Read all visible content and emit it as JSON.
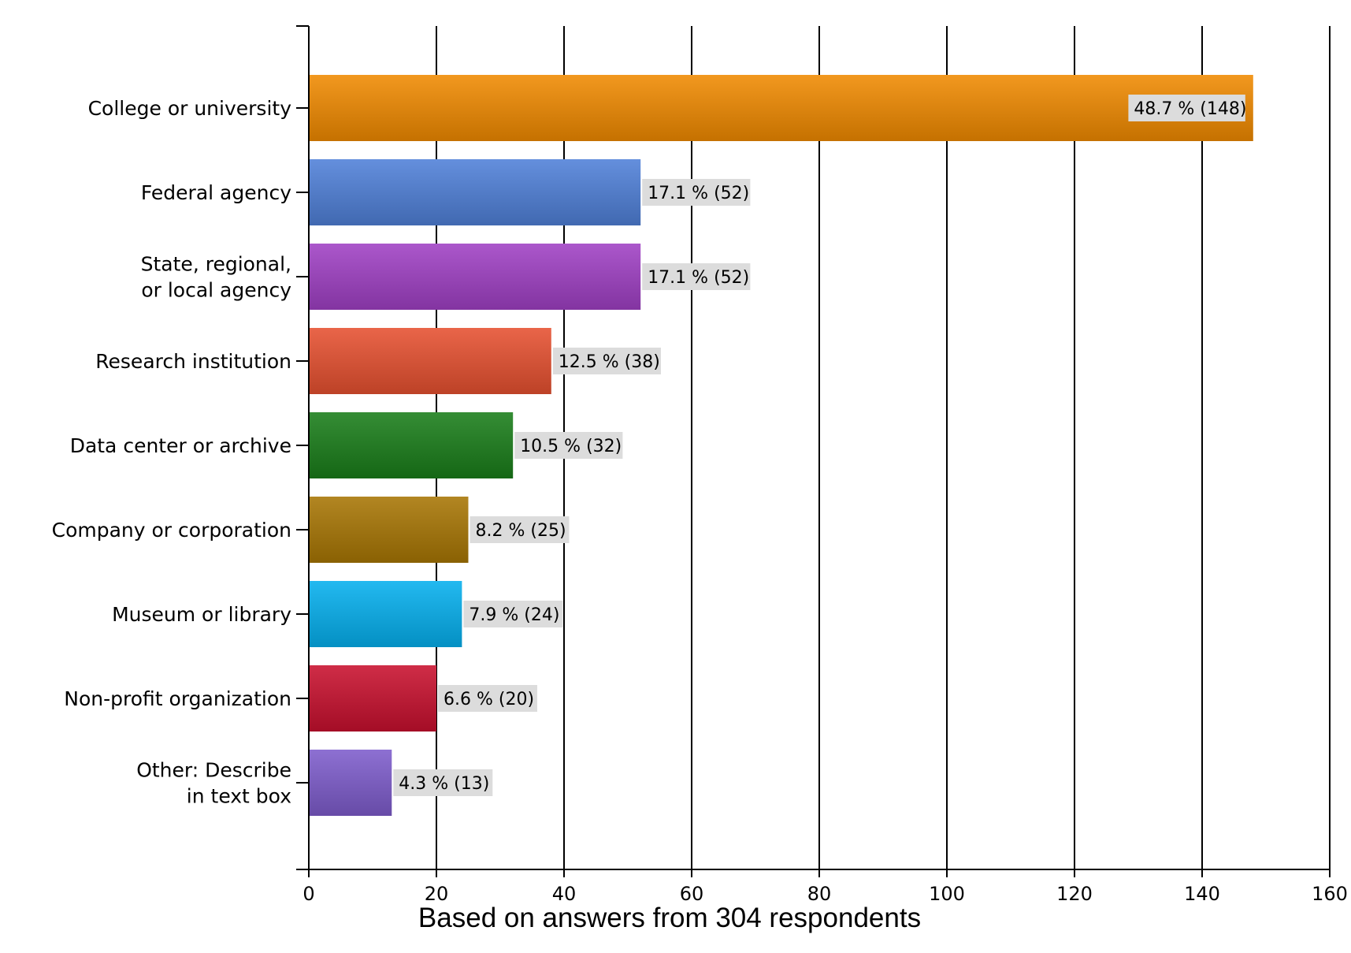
{
  "chart_data": {
    "type": "bar",
    "orientation": "horizontal",
    "categories": [
      [
        "College or university"
      ],
      [
        "Federal agency"
      ],
      [
        "State, regional,",
        "or local agency"
      ],
      [
        "Research institution"
      ],
      [
        "Data center or archive"
      ],
      [
        "Company or corporation"
      ],
      [
        "Museum or library"
      ],
      [
        "Non-profit organization"
      ],
      [
        "Other: Describe",
        "in text box"
      ]
    ],
    "values": [
      148,
      52,
      52,
      38,
      32,
      25,
      24,
      20,
      13
    ],
    "value_labels": [
      "48.7 % (148)",
      "17.1 % (52)",
      "17.1 % (52)",
      "12.5 % (38)",
      "10.5 % (32)",
      "8.2 % (25)",
      "7.9 % (24)",
      "6.6 % (20)",
      "4.3 % (13)"
    ],
    "colors": [
      "#f08a00",
      "#4f80d8",
      "#a040c4",
      "#e65030",
      "#1a7d1a",
      "#a87604",
      "#05b0ee",
      "#c8102e",
      "#7e5ccc"
    ],
    "xlim": [
      0,
      160
    ],
    "xticks": [
      "0",
      "20",
      "40",
      "60",
      "80",
      "100",
      "120",
      "140",
      "160"
    ],
    "grid": true,
    "footnote": "Based on answers from  304 respondents"
  }
}
